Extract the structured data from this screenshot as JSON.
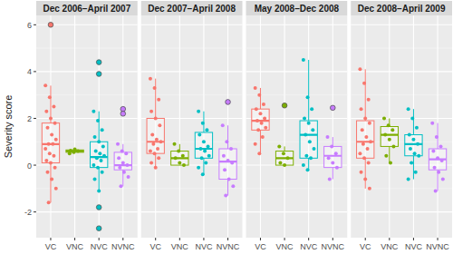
{
  "chart_data": {
    "type": "box",
    "y_label": "Severity score",
    "ylim": [
      -3.1,
      6.4
    ],
    "yticks": [
      -2,
      0,
      2,
      4,
      6
    ],
    "grid": true,
    "categories": [
      "VC",
      "VNC",
      "NVC",
      "NVNC"
    ],
    "colors": [
      "#F8766D",
      "#7CAE00",
      "#00BFC4",
      "#C77CFF"
    ],
    "facets": [
      {
        "title": "Dec 2006–April 2007",
        "boxes": [
          {
            "whisker_low": -1.6,
            "q1": 0.1,
            "median": 0.9,
            "q3": 1.8,
            "whisker_high": 3.4,
            "outliers": [
              6.0
            ],
            "points": [
              3.4,
              2.9,
              2.5,
              2.3,
              2.0,
              1.8,
              1.6,
              1.3,
              1.1,
              0.9,
              0.9,
              0.7,
              0.5,
              0.4,
              0.2,
              0.1,
              -0.1,
              -0.3,
              -0.6,
              -1.0,
              -1.6
            ]
          },
          {
            "whisker_low": 0.5,
            "q1": 0.55,
            "median": 0.6,
            "q3": 0.65,
            "whisker_high": 0.7,
            "outliers": [],
            "points": [
              0.5,
              0.55,
              0.6,
              0.62,
              0.68
            ]
          },
          {
            "whisker_low": -1.1,
            "q1": -0.1,
            "median": 0.35,
            "q3": 1.0,
            "whisker_high": 2.3,
            "outliers": [
              4.4,
              3.9,
              -1.8,
              -2.7
            ],
            "points": [
              2.3,
              1.9,
              1.5,
              1.2,
              1.0,
              0.8,
              0.6,
              0.5,
              0.4,
              0.3,
              0.2,
              0.0,
              -0.1,
              -0.3,
              -0.6,
              -1.1
            ]
          },
          {
            "whisker_low": -0.9,
            "q1": -0.2,
            "median": 0.0,
            "q3": 0.55,
            "whisker_high": 0.9,
            "outliers": [
              2.4,
              2.2
            ],
            "points": [
              0.9,
              0.6,
              0.5,
              0.3,
              0.1,
              0.0,
              -0.1,
              -0.3,
              -0.5,
              -0.9
            ]
          }
        ]
      },
      {
        "title": "Dec 2007–April 2008",
        "boxes": [
          {
            "whisker_low": -0.1,
            "q1": 0.5,
            "median": 1.0,
            "q3": 2.0,
            "whisker_high": 3.7,
            "outliers": [],
            "points": [
              3.7,
              3.3,
              2.8,
              2.3,
              2.0,
              1.7,
              1.3,
              1.1,
              1.0,
              0.9,
              0.7,
              0.6,
              0.5,
              0.3,
              0.1,
              -0.1
            ]
          },
          {
            "whisker_low": 0.0,
            "q1": 0.0,
            "median": 0.3,
            "q3": 0.6,
            "whisker_high": 0.9,
            "outliers": [],
            "points": [
              0.9,
              0.6,
              0.4,
              0.3,
              0.1,
              0.0
            ]
          },
          {
            "whisker_low": -0.4,
            "q1": 0.3,
            "median": 0.7,
            "q3": 1.4,
            "whisker_high": 2.3,
            "outliers": [],
            "points": [
              2.3,
              1.8,
              1.5,
              1.3,
              1.0,
              0.8,
              0.7,
              0.6,
              0.4,
              0.3,
              0.1,
              -0.1,
              -0.4
            ]
          },
          {
            "whisker_low": -1.3,
            "q1": -0.6,
            "median": 0.15,
            "q3": 0.7,
            "whisker_high": 1.7,
            "outliers": [
              2.7
            ],
            "points": [
              1.7,
              1.0,
              0.7,
              0.4,
              0.2,
              0.1,
              -0.2,
              -0.6,
              -0.9,
              -1.3
            ]
          }
        ]
      },
      {
        "title": "May 2008–Dec 2008",
        "boxes": [
          {
            "whisker_low": 0.5,
            "q1": 1.5,
            "median": 1.9,
            "q3": 2.4,
            "whisker_high": 3.3,
            "outliers": [],
            "points": [
              3.3,
              3.0,
              2.6,
              2.4,
              2.2,
              2.0,
              1.9,
              1.8,
              1.6,
              1.5,
              1.2,
              0.9,
              0.5
            ]
          },
          {
            "whisker_low": -0.05,
            "q1": 0.0,
            "median": 0.3,
            "q3": 0.6,
            "whisker_high": 0.8,
            "outliers": [
              2.55
            ],
            "points": [
              0.8,
              0.5,
              0.3,
              0.1,
              0.0
            ]
          },
          {
            "whisker_low": -0.2,
            "q1": 0.3,
            "median": 1.3,
            "q3": 1.9,
            "whisker_high": 4.5,
            "outliers": [],
            "points": [
              4.5,
              2.9,
              2.4,
              2.0,
              1.8,
              1.5,
              1.3,
              1.0,
              0.7,
              0.4,
              0.3,
              0.0,
              -0.2
            ]
          },
          {
            "whisker_low": -0.6,
            "q1": -0.1,
            "median": 0.4,
            "q3": 0.8,
            "whisker_high": 1.2,
            "outliers": [
              2.45
            ],
            "points": [
              1.2,
              0.8,
              0.5,
              0.3,
              0.1,
              -0.1,
              -0.6
            ]
          }
        ]
      },
      {
        "title": "Dec 2008–April 2009",
        "boxes": [
          {
            "whisker_low": -1.0,
            "q1": 0.3,
            "median": 1.0,
            "q3": 1.9,
            "whisker_high": 4.1,
            "outliers": [],
            "points": [
              4.1,
              3.5,
              2.8,
              2.4,
              2.0,
              1.8,
              1.5,
              1.2,
              1.0,
              0.9,
              0.7,
              0.5,
              0.3,
              0.1,
              -0.3,
              -0.6,
              -1.0
            ]
          },
          {
            "whisker_low": 0.1,
            "q1": 0.8,
            "median": 1.3,
            "q3": 1.65,
            "whisker_high": 2.0,
            "outliers": [],
            "points": [
              2.0,
              1.7,
              1.5,
              1.3,
              1.1,
              0.8,
              0.4,
              0.1
            ]
          },
          {
            "whisker_low": -0.6,
            "q1": 0.4,
            "median": 0.9,
            "q3": 1.3,
            "whisker_high": 2.4,
            "outliers": [],
            "points": [
              2.4,
              2.0,
              1.6,
              1.3,
              1.1,
              0.9,
              0.7,
              0.5,
              0.4,
              0.1,
              -0.3,
              -0.6
            ]
          },
          {
            "whisker_low": -1.1,
            "q1": -0.2,
            "median": 0.25,
            "q3": 0.7,
            "whisker_high": 1.8,
            "outliers": [],
            "points": [
              1.8,
              1.2,
              0.8,
              0.6,
              0.3,
              0.2,
              -0.1,
              -0.3,
              -0.6,
              -1.1
            ]
          }
        ]
      }
    ]
  }
}
